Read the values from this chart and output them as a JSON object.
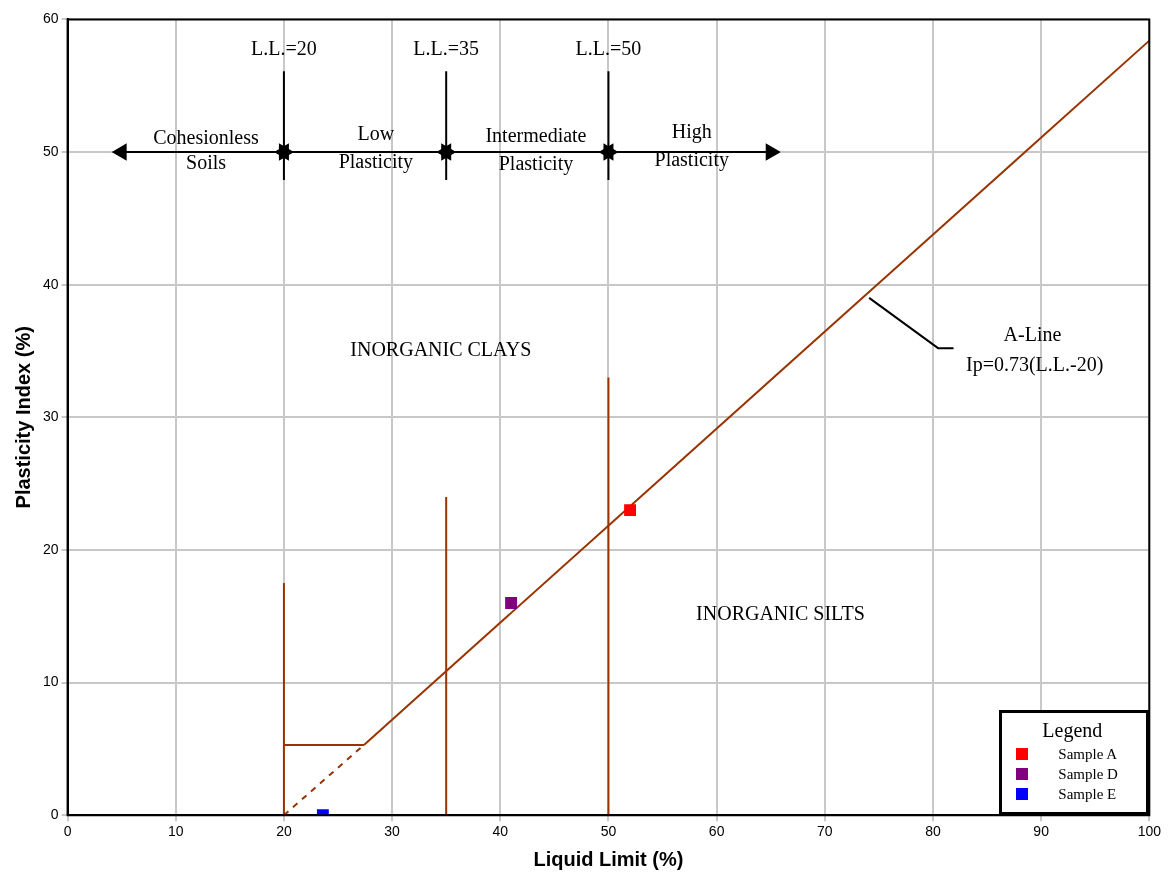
{
  "chart_data": {
    "type": "scatter",
    "xlabel": "Liquid Limit (%)",
    "ylabel": "Plasticity Index (%)",
    "xlim": [
      0,
      100
    ],
    "ylim": [
      0,
      60
    ],
    "xticks": [
      0,
      10,
      20,
      30,
      40,
      50,
      60,
      70,
      80,
      90,
      100
    ],
    "yticks": [
      0,
      10,
      20,
      30,
      40,
      50,
      60
    ],
    "grid": true,
    "legend": "bottom right",
    "legend_title": "Legend",
    "series": [
      {
        "type": "line",
        "color": "#993300",
        "x": [
          27.4,
          100
        ],
        "values": [
          5.3,
          58.4
        ]
      },
      {
        "type": "line",
        "color": "#993300",
        "x": [
          20,
          27.4
        ],
        "values": [
          0,
          5.3
        ],
        "line_style": "dashed"
      },
      {
        "type": "line",
        "color": "#993300",
        "x": [
          20,
          27.4
        ],
        "values": [
          5.3,
          5.3
        ]
      },
      {
        "type": "line",
        "color": "#993300",
        "x": [
          20,
          20
        ],
        "values": [
          0,
          17.5
        ]
      },
      {
        "type": "line",
        "color": "#993300",
        "x": [
          35,
          35
        ],
        "values": [
          0,
          24
        ]
      },
      {
        "type": "line",
        "color": "#993300",
        "x": [
          50,
          50
        ],
        "values": [
          0,
          33
        ]
      },
      {
        "type": "line",
        "color": "#000000",
        "x": [
          20,
          20
        ],
        "values": [
          47.9,
          56.1
        ]
      },
      {
        "type": "line",
        "color": "#000000",
        "x": [
          35,
          35
        ],
        "values": [
          47.9,
          56.1
        ]
      },
      {
        "type": "line",
        "color": "#000000",
        "x": [
          50,
          50
        ],
        "values": [
          47.9,
          56.1
        ]
      },
      {
        "type": "line",
        "color": "#000000",
        "x": [
          5,
          20
        ],
        "values": [
          50,
          50
        ],
        "marker": "triangle"
      },
      {
        "type": "line",
        "color": "#000000",
        "x": [
          20,
          35
        ],
        "values": [
          50,
          50
        ],
        "marker": "triangle"
      },
      {
        "type": "line",
        "color": "#000000",
        "x": [
          35,
          50
        ],
        "values": [
          50,
          50
        ],
        "marker": "triangle"
      },
      {
        "type": "line",
        "color": "#000000",
        "x": [
          50,
          65
        ],
        "values": [
          50,
          50
        ],
        "marker": "triangle"
      },
      {
        "type": "line",
        "color": "#000000",
        "x": [
          81.9,
          80.5,
          74.1
        ],
        "values": [
          35.2,
          35.2,
          39.0
        ]
      },
      {
        "name": "Sample A",
        "color": "#ff0000",
        "x": [
          52
        ],
        "values": [
          23
        ],
        "marker": "square"
      },
      {
        "name": "Sample D",
        "color": "#800080",
        "x": [
          41
        ],
        "values": [
          16
        ],
        "marker": "square"
      },
      {
        "name": "Sample E",
        "color": "#0000ff",
        "x": [
          23.6
        ],
        "values": [
          0
        ],
        "marker": "square"
      }
    ],
    "annotations": [
      "L.L.=20",
      "L.L.=35",
      "L.L.=50",
      "Cohesionless",
      "Soils",
      "Low",
      "Plasticity",
      "Intermediate",
      "Plasticity",
      "High",
      "Plasticity",
      "INORGANIC CLAYS",
      "INORGANIC SILTS",
      "A-Line",
      "Ip=0.73(L.L.-20)"
    ]
  }
}
